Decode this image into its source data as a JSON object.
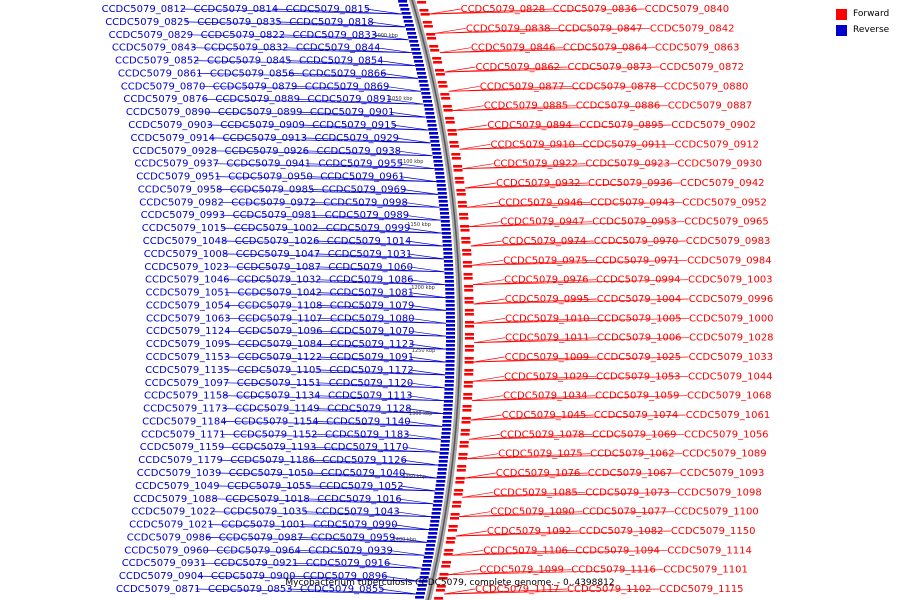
{
  "title": "Mycobacterium tuberculosis CCDC5079, complete genome. - 0..4398812",
  "legend": {
    "forward_label": "Forward",
    "reverse_label": "Reverse",
    "forward_color": "#ff0000",
    "reverse_color": "#0000cc"
  },
  "ticks": [
    "1000 kbp",
    "1050 kbp",
    "1100 kbp",
    "1150 kbp",
    "1200 kbp",
    "1250 kbp",
    "1300 kbp",
    "1350 kbp",
    "1400 kbp"
  ],
  "forward_genes": [
    "CCDC5079_0828",
    "CCDC5079_0836",
    "CCDC5079_0840",
    "CCDC5079_0838",
    "CCDC5079_0847",
    "CCDC5079_0842",
    "CCDC5079_0846",
    "CCDC5079_0864",
    "CCDC5079_0863",
    "CCDC5079_0862",
    "CCDC5079_0873",
    "CCDC5079_0872",
    "CCDC5079_0877",
    "CCDC5079_0878",
    "CCDC5079_0880",
    "CCDC5079_0885",
    "CCDC5079_0886",
    "CCDC5079_0887",
    "CCDC5079_0894",
    "CCDC5079_0895",
    "CCDC5079_0902",
    "CCDC5079_0910",
    "CCDC5079_0911",
    "CCDC5079_0912",
    "CCDC5079_0922",
    "CCDC5079_0923",
    "CCDC5079_0930",
    "CCDC5079_0932",
    "CCDC5079_0936",
    "CCDC5079_0942",
    "CCDC5079_0946",
    "CCDC5079_0943",
    "CCDC5079_0952",
    "CCDC5079_0947",
    "CCDC5079_0953",
    "CCDC5079_0965",
    "CCDC5079_0974",
    "CCDC5079_0970",
    "CCDC5079_0983",
    "CCDC5079_0975",
    "CCDC5079_0971",
    "CCDC5079_0984",
    "CCDC5079_0976",
    "CCDC5079_0994",
    "CCDC5079_1003",
    "CCDC5079_0995",
    "CCDC5079_1004",
    "CCDC5079_0996",
    "CCDC5079_1010",
    "CCDC5079_1005",
    "CCDC5079_1000",
    "CCDC5079_1011",
    "CCDC5079_1006",
    "CCDC5079_1028",
    "CCDC5079_1009",
    "CCDC5079_1025",
    "CCDC5079_1033",
    "CCDC5079_1029",
    "CCDC5079_1053",
    "CCDC5079_1044",
    "CCDC5079_1034",
    "CCDC5079_1059",
    "CCDC5079_1068",
    "CCDC5079_1045",
    "CCDC5079_1074",
    "CCDC5079_1061",
    "CCDC5079_1078",
    "CCDC5079_1069",
    "CCDC5079_1056",
    "CCDC5079_1075",
    "CCDC5079_1062",
    "CCDC5079_1089",
    "CCDC5079_1076",
    "CCDC5079_1067",
    "CCDC5079_1093",
    "CCDC5079_1085",
    "CCDC5079_1073",
    "CCDC5079_1098",
    "CCDC5079_1090",
    "CCDC5079_1077",
    "CCDC5079_1100",
    "CCDC5079_1092",
    "CCDC5079_1082",
    "CCDC5079_1150",
    "CCDC5079_1106",
    "CCDC5079_1094",
    "CCDC5079_1114",
    "CCDC5079_1099",
    "CCDC5079_1116",
    "CCDC5079_1101",
    "CCDC5079_1117",
    "CCDC5079_1102",
    "CCDC5079_1115"
  ],
  "reverse_genes": [
    "CCDC5079_0812",
    "CCDC5079_0814",
    "CCDC5079_0815",
    "CCDC5079_0825",
    "CCDC5079_0835",
    "CCDC5079_0818",
    "CCDC5079_0829",
    "CCDC5079_0822",
    "CCDC5079_0833",
    "CCDC5079_0843",
    "CCDC5079_0832",
    "CCDC5079_0844",
    "CCDC5079_0852",
    "CCDC5079_0845",
    "CCDC5079_0854",
    "CCDC5079_0861",
    "CCDC5079_0856",
    "CCDC5079_0866",
    "CCDC5079_0870",
    "CCDC5079_0879",
    "CCDC5079_0869",
    "CCDC5079_0876",
    "CCDC5079_0889",
    "CCDC5079_0891",
    "CCDC5079_0890",
    "CCDC5079_0899",
    "CCDC5079_0901",
    "CCDC5079_0903",
    "CCDC5079_0909",
    "CCDC5079_0915",
    "CCDC5079_0914",
    "CCDC5079_0913",
    "CCDC5079_0929",
    "CCDC5079_0928",
    "CCDC5079_0926",
    "CCDC5079_0938",
    "CCDC5079_0937",
    "CCDC5079_0941",
    "CCDC5079_0955",
    "CCDC5079_0951",
    "CCDC5079_0950",
    "CCDC5079_0961",
    "CCDC5079_0958",
    "CCDC5079_0985",
    "CCDC5079_0969",
    "CCDC5079_0982",
    "CCDC5079_0972",
    "CCDC5079_0998",
    "CCDC5079_0993",
    "CCDC5079_0981",
    "CCDC5079_0989",
    "CCDC5079_1015",
    "CCDC5079_1002",
    "CCDC5079_0999",
    "CCDC5079_1048",
    "CCDC5079_1026",
    "CCDC5079_1014",
    "CCDC5079_1008",
    "CCDC5079_1047",
    "CCDC5079_1031",
    "CCDC5079_1023",
    "CCDC5079_1087",
    "CCDC5079_1060",
    "CCDC5079_1046",
    "CCDC5079_1032",
    "CCDC5079_1086",
    "CCDC5079_1051",
    "CCDC5079_1042",
    "CCDC5079_1081",
    "CCDC5079_1054",
    "CCDC5079_1108",
    "CCDC5079_1079",
    "CCDC5079_1063",
    "CCDC5079_1107",
    "CCDC5079_1080",
    "CCDC5079_1124",
    "CCDC5079_1096",
    "CCDC5079_1070",
    "CCDC5079_1095",
    "CCDC5079_1084",
    "CCDC5079_1123",
    "CCDC5079_1153",
    "CCDC5079_1122",
    "CCDC5079_1091",
    "CCDC5079_1135",
    "CCDC5079_1105",
    "CCDC5079_1172",
    "CCDC5079_1097",
    "CCDC5079_1151",
    "CCDC5079_1120",
    "CCDC5079_1158",
    "CCDC5079_1134",
    "CCDC5079_1113",
    "CCDC5079_1173",
    "CCDC5079_1149",
    "CCDC5079_1128",
    "CCDC5079_1184",
    "CCDC5079_1154",
    "CCDC5079_1140",
    "CCDC5079_1171",
    "CCDC5079_1152",
    "CCDC5079_1183",
    "CCDC5079_1159",
    "CCDC5079_1193",
    "CCDC5079_1170",
    "CCDC5079_1179",
    "CCDC5079_1186",
    "CCDC5079_1126",
    "CCDC5079_1039",
    "CCDC5079_1050",
    "CCDC5079_1040",
    "CCDC5079_1049",
    "CCDC5079_1055",
    "CCDC5079_1052",
    "CCDC5079_1088",
    "CCDC5079_1018",
    "CCDC5079_1016",
    "CCDC5079_1022",
    "CCDC5079_1035",
    "CCDC5079_1043",
    "CCDC5079_1021",
    "CCDC5079_1001",
    "CCDC5079_0990",
    "CCDC5079_0986",
    "CCDC5079_0987",
    "CCDC5079_0959",
    "CCDC5079_0960",
    "CCDC5079_0964",
    "CCDC5079_0939",
    "CCDC5079_0931",
    "CCDC5079_0921",
    "CCDC5079_0916",
    "CCDC5079_0904",
    "CCDC5079_0900",
    "CCDC5079_0896",
    "CCDC5079_0871",
    "CCDC5079_0853",
    "CCDC5079_0855"
  ]
}
